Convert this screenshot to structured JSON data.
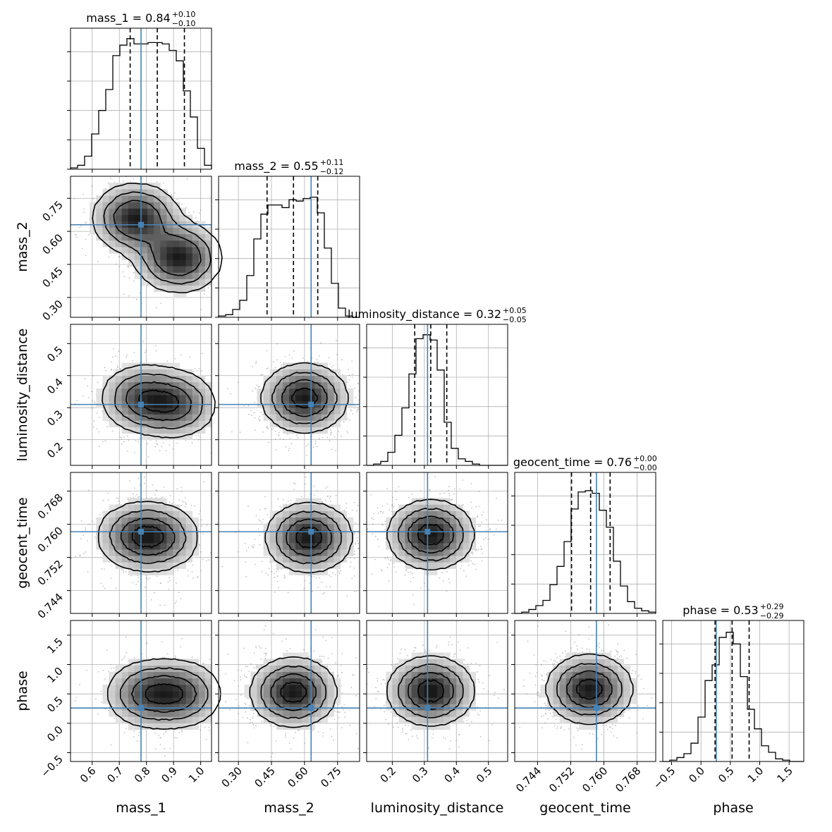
{
  "chart_data": {
    "type": "corner",
    "truth_color": "#4682b4",
    "hist_color": "#000000",
    "grid": true,
    "parameters": [
      {
        "name": "mass_1",
        "label": "mass_1",
        "title": "mass_1 = 0.84",
        "title_sup": "+0.10",
        "title_sub": "−0.10",
        "range": [
          0.52,
          1.04
        ],
        "ticks": [
          0.6,
          0.7,
          0.8,
          0.9,
          1.0
        ],
        "tick_labels": [
          "0.6",
          "0.7",
          "0.8",
          "0.9",
          "1.0"
        ],
        "median": 0.84,
        "quantiles": [
          0.74,
          0.84,
          0.94
        ],
        "truth": 0.78,
        "hist_bins": [
          0.52,
          0.546,
          0.572,
          0.598,
          0.624,
          0.65,
          0.676,
          0.702,
          0.728,
          0.754,
          0.78,
          0.806,
          0.832,
          0.858,
          0.884,
          0.91,
          0.936,
          0.962,
          0.988,
          1.014,
          1.04
        ],
        "hist_counts": [
          0.01,
          0.03,
          0.1,
          0.27,
          0.45,
          0.61,
          0.87,
          0.95,
          1.0,
          0.96,
          0.96,
          0.97,
          0.97,
          0.96,
          0.91,
          0.83,
          0.6,
          0.4,
          0.16,
          0.03
        ],
        "hist_ylim": [
          0,
          1.08
        ]
      },
      {
        "name": "mass_2",
        "label": "mass_2",
        "title": "mass_2 = 0.55",
        "title_sup": "+0.11",
        "title_sub": "−0.12",
        "range": [
          0.21,
          0.85
        ],
        "ticks": [
          0.3,
          0.45,
          0.6,
          0.75
        ],
        "tick_labels": [
          "0.30",
          "0.45",
          "0.60",
          "0.75"
        ],
        "median": 0.55,
        "quantiles": [
          0.43,
          0.55,
          0.66
        ],
        "truth": 0.63,
        "hist_bins": [
          0.21,
          0.242,
          0.274,
          0.306,
          0.338,
          0.37,
          0.402,
          0.434,
          0.466,
          0.498,
          0.53,
          0.562,
          0.594,
          0.626,
          0.658,
          0.69,
          0.722,
          0.754,
          0.786,
          0.818,
          0.85
        ],
        "hist_counts": [
          0.01,
          0.02,
          0.06,
          0.13,
          0.32,
          0.6,
          0.79,
          0.86,
          0.86,
          0.84,
          0.9,
          0.89,
          0.91,
          0.92,
          0.8,
          0.53,
          0.26,
          0.07,
          0.01,
          0.0
        ],
        "hist_ylim": [
          0,
          1.08
        ]
      },
      {
        "name": "luminosity_distance",
        "label": "luminosity_distance",
        "title": "luminosity_distance = 0.32",
        "title_sup": "+0.05",
        "title_sub": "−0.05",
        "range": [
          0.12,
          0.56
        ],
        "ticks": [
          0.2,
          0.3,
          0.4,
          0.5
        ],
        "tick_labels": [
          "0.2",
          "0.3",
          "0.4",
          "0.5"
        ],
        "median": 0.32,
        "quantiles": [
          0.27,
          0.32,
          0.37
        ],
        "truth": 0.31,
        "hist_bins": [
          0.12,
          0.142,
          0.164,
          0.186,
          0.208,
          0.23,
          0.252,
          0.274,
          0.296,
          0.318,
          0.34,
          0.362,
          0.384,
          0.406,
          0.428,
          0.45,
          0.472,
          0.494,
          0.516,
          0.538,
          0.56
        ],
        "hist_counts": [
          0.0,
          0.01,
          0.03,
          0.1,
          0.23,
          0.44,
          0.7,
          0.97,
          1.0,
          0.96,
          0.73,
          0.33,
          0.13,
          0.05,
          0.03,
          0.01,
          0.0,
          0.0,
          0.0,
          0.0
        ],
        "hist_ylim": [
          0,
          1.08
        ]
      },
      {
        "name": "geocent_time",
        "label": "geocent_time",
        "title": "geocent_time = 0.76",
        "title_sup": "+0.00",
        "title_sub": "−0.00",
        "range": [
          0.7385,
          0.7725
        ],
        "ticks": [
          0.744,
          0.752,
          0.76,
          0.768
        ],
        "tick_labels": [
          "0.744",
          "0.752",
          "0.760",
          "0.768"
        ],
        "median": 0.7568,
        "quantiles": [
          0.7522,
          0.7568,
          0.7615
        ],
        "truth": 0.7582,
        "hist_bins": [
          0.7385,
          0.7402,
          0.7419,
          0.7436,
          0.7453,
          0.747,
          0.7487,
          0.7504,
          0.7521,
          0.7538,
          0.7555,
          0.7572,
          0.7589,
          0.7606,
          0.7623,
          0.764,
          0.7657,
          0.7674,
          0.7691,
          0.7708,
          0.7725
        ],
        "hist_counts": [
          0.0,
          0.01,
          0.03,
          0.06,
          0.1,
          0.22,
          0.36,
          0.55,
          0.8,
          0.93,
          0.94,
          0.92,
          0.79,
          0.66,
          0.4,
          0.21,
          0.09,
          0.04,
          0.02,
          0.01
        ],
        "hist_ylim": [
          0,
          1.08
        ]
      },
      {
        "name": "phase",
        "label": "phase",
        "title": "phase = 0.53",
        "title_sup": "+0.29",
        "title_sub": "−0.29",
        "range": [
          -0.65,
          1.75
        ],
        "ticks": [
          -0.5,
          0.0,
          0.5,
          1.0,
          1.5
        ],
        "tick_labels": [
          "−0.5",
          "0.0",
          "0.5",
          "1.0",
          "1.5"
        ],
        "median": 0.53,
        "quantiles": [
          0.24,
          0.53,
          0.82
        ],
        "truth": 0.26,
        "hist_bins": [
          -0.65,
          -0.53,
          -0.41,
          -0.29,
          -0.17,
          -0.05,
          0.07,
          0.19,
          0.31,
          0.43,
          0.55,
          0.67,
          0.79,
          0.91,
          1.03,
          1.15,
          1.27,
          1.39,
          1.51,
          1.63,
          1.75
        ],
        "hist_counts": [
          0.0,
          0.01,
          0.03,
          0.06,
          0.14,
          0.34,
          0.62,
          0.74,
          0.95,
          0.99,
          0.9,
          0.65,
          0.4,
          0.25,
          0.12,
          0.07,
          0.02,
          0.01,
          0.0,
          0.0
        ],
        "hist_ylim": [
          0,
          1.08
        ]
      }
    ],
    "density_modes": [
      {
        "pair": [
          0,
          1
        ],
        "peaks": [
          {
            "x": 0.76,
            "y": 0.66
          },
          {
            "x": 0.92,
            "y": 0.48
          }
        ]
      },
      {
        "pair": [
          0,
          2
        ],
        "peaks": [
          {
            "x": 0.78,
            "y": 0.33
          },
          {
            "x": 0.91,
            "y": 0.31
          }
        ]
      },
      {
        "pair": [
          1,
          2
        ],
        "peaks": [
          {
            "x": 0.6,
            "y": 0.33
          }
        ]
      },
      {
        "pair": [
          0,
          3
        ],
        "peaks": [
          {
            "x": 0.85,
            "y": 0.7568
          },
          {
            "x": 0.76,
            "y": 0.7572
          }
        ]
      },
      {
        "pair": [
          1,
          3
        ],
        "peaks": [
          {
            "x": 0.62,
            "y": 0.7568
          }
        ]
      },
      {
        "pair": [
          2,
          3
        ],
        "peaks": [
          {
            "x": 0.32,
            "y": 0.7575
          }
        ]
      },
      {
        "pair": [
          0,
          4
        ],
        "peaks": [
          {
            "x": 0.8,
            "y": 0.5
          },
          {
            "x": 0.93,
            "y": 0.5
          }
        ]
      },
      {
        "pair": [
          1,
          4
        ],
        "peaks": [
          {
            "x": 0.55,
            "y": 0.53
          }
        ]
      },
      {
        "pair": [
          2,
          4
        ],
        "peaks": [
          {
            "x": 0.32,
            "y": 0.55
          }
        ]
      },
      {
        "pair": [
          3,
          4
        ],
        "peaks": [
          {
            "x": 0.7565,
            "y": 0.58
          }
        ]
      }
    ]
  }
}
